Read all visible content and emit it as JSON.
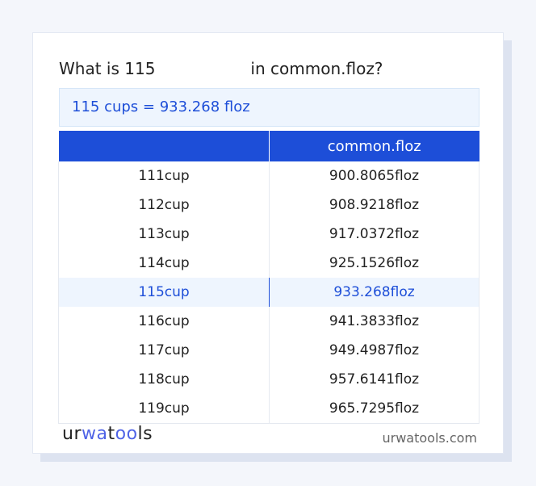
{
  "title": {
    "prefix": "What is 115",
    "suffix": "in common.floz?"
  },
  "result": "115 cups = 933.268 floz",
  "table": {
    "headers": [
      "",
      "common.floz"
    ],
    "rows": [
      [
        "111cup",
        "900.8065floz"
      ],
      [
        "112cup",
        "908.9218floz"
      ],
      [
        "113cup",
        "917.0372floz"
      ],
      [
        "114cup",
        "925.1526floz"
      ],
      [
        "115cup",
        "933.268floz"
      ],
      [
        "116cup",
        "941.3833floz"
      ],
      [
        "117cup",
        "949.4987floz"
      ],
      [
        "118cup",
        "957.6141floz"
      ],
      [
        "119cup",
        "965.7295floz"
      ]
    ],
    "highlighted_row": 4
  },
  "footer": {
    "logo": "urwatools",
    "site": "urwatools.com"
  },
  "colors": {
    "accent": "#1d4ed8",
    "highlight_bg": "#eef5fe"
  }
}
